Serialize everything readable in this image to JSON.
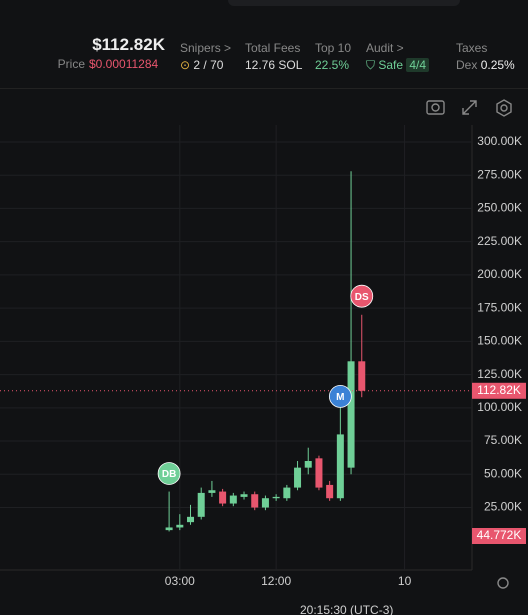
{
  "header": {
    "market_cap": "$112.82K",
    "price_label": "Price",
    "price": "$0.00011284",
    "stats": [
      {
        "label": "Snipers >",
        "value": "2 / 70"
      },
      {
        "label": "Total Fees",
        "value": "12.76 SOL"
      },
      {
        "label": "Top 10",
        "value": "22.5%"
      },
      {
        "label": "Audit >",
        "value": "Safe",
        "badge": "4/4"
      },
      {
        "label": "Taxes",
        "prefix": "Dex",
        "value": "0.25%"
      }
    ]
  },
  "chart_data": {
    "type": "candlestick",
    "x": [
      0,
      1,
      2,
      3,
      4,
      5,
      6,
      7,
      8,
      9,
      10,
      11,
      12,
      13,
      14,
      15,
      16,
      17,
      18
    ],
    "open": [
      8,
      10,
      14,
      18,
      36,
      37,
      28,
      33,
      35,
      25,
      32,
      32,
      40,
      55,
      62,
      42,
      32,
      55,
      135
    ],
    "high": [
      37,
      20,
      27,
      40,
      45,
      39,
      36,
      37,
      37,
      34,
      35,
      42,
      60,
      70,
      64,
      45,
      115,
      278,
      170
    ],
    "low": [
      7,
      8,
      12,
      16,
      33,
      26,
      26,
      31,
      23,
      23,
      30,
      30,
      38,
      50,
      38,
      30,
      30,
      50,
      108
    ],
    "close": [
      10,
      12,
      18,
      36,
      38,
      28,
      34,
      35,
      25,
      32,
      33,
      40,
      55,
      60,
      40,
      32,
      80,
      135,
      112.82
    ],
    "up_color": "#6fcf97",
    "down_color": "#e8566e",
    "xlim": [
      -15.8,
      28.3
    ],
    "ylim": [
      -22,
      309
    ],
    "xticks": [
      {
        "value": 1,
        "label": "03:00"
      },
      {
        "value": 10,
        "label": "12:00"
      },
      {
        "value": 22,
        "label": "10"
      }
    ],
    "yticks": [
      {
        "value": 300,
        "label": "300.00K"
      },
      {
        "value": 275,
        "label": "275.00K"
      },
      {
        "value": 250,
        "label": "250.00K"
      },
      {
        "value": 225,
        "label": "225.00K"
      },
      {
        "value": 200,
        "label": "200.00K"
      },
      {
        "value": 175,
        "label": "175.00K"
      },
      {
        "value": 150,
        "label": "150.00K"
      },
      {
        "value": 125,
        "label": "125.00K"
      },
      {
        "value": 100,
        "label": "100.00K"
      },
      {
        "value": 75,
        "label": "75.00K"
      },
      {
        "value": 50,
        "label": "50.00K"
      },
      {
        "value": 25,
        "label": "25.00K"
      }
    ],
    "grid": true,
    "last_price": {
      "value": 112.82,
      "label": "112.82K"
    },
    "bottom_label": "44.772K",
    "markers": [
      {
        "label": "DB",
        "x": 0,
        "value": 50.6,
        "color": "#6fcf97"
      },
      {
        "label": "M",
        "x": 16,
        "value": 108.6,
        "color": "#3b82d6"
      },
      {
        "label": "DS",
        "x": 18,
        "value": 184,
        "color": "#e8566e"
      }
    ],
    "time_label": "20:15:30 (UTC-3)"
  }
}
